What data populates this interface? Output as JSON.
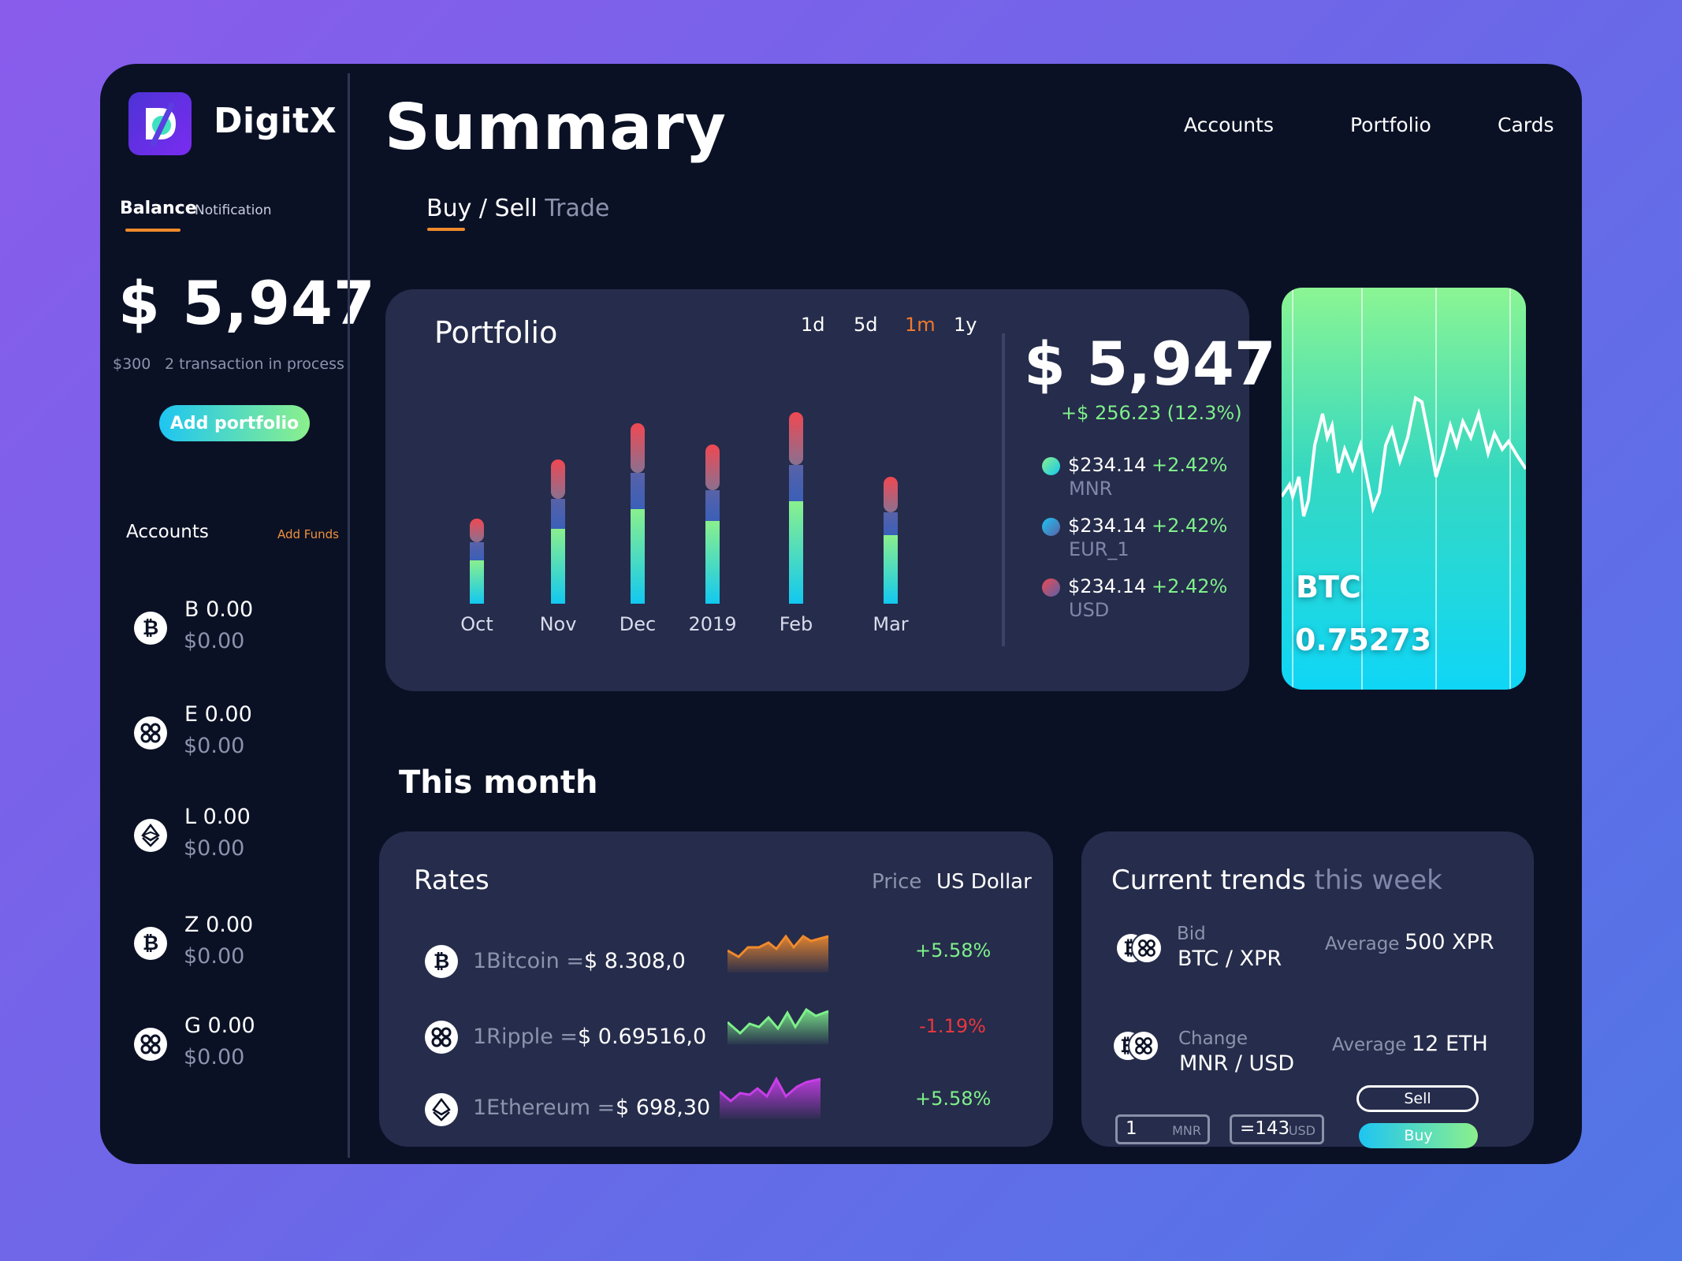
{
  "brand": {
    "name": "DigitX"
  },
  "sidebar": {
    "tabs": {
      "balance": "Balance",
      "notification": "Notification"
    },
    "balance": "$ 5,947",
    "pending_amount": "$300",
    "pending_text": "2 transaction in process",
    "add_portfolio": "Add portfolio",
    "accounts_title": "Accounts",
    "add_funds": "Add Funds",
    "accounts": [
      {
        "name": "B 0.00",
        "value": "$0.00",
        "icon": "bitcoin-icon"
      },
      {
        "name": "E 0.00",
        "value": "$0.00",
        "icon": "ripple-icon"
      },
      {
        "name": "L 0.00",
        "value": "$0.00",
        "icon": "ethereum-icon"
      },
      {
        "name": "Z 0.00",
        "value": "$0.00",
        "icon": "bitcoin-icon"
      },
      {
        "name": "G 0.00",
        "value": "$0.00",
        "icon": "ripple-icon"
      }
    ]
  },
  "header": {
    "title": "Summary",
    "nav": [
      "Accounts",
      "Portfolio",
      "Cards"
    ],
    "subtab_buy_sell": "Buy / Sell",
    "subtab_trade": "Trade"
  },
  "portfolio": {
    "title": "Portfolio",
    "periods": [
      "1d",
      "5d",
      "1m",
      "1y"
    ],
    "active_period": "1m",
    "amount": "$ 5,947",
    "change": "+$ 256.23 (12.3%)",
    "legend": [
      {
        "value": "$234.14",
        "pct": "+2.42%",
        "name": "MNR"
      },
      {
        "value": "$234.14",
        "pct": "+2.42%",
        "name": "EUR_1"
      },
      {
        "value": "$234.14",
        "pct": "+2.42%",
        "name": "USD"
      }
    ]
  },
  "chart_data": {
    "type": "bar",
    "stacked": true,
    "categories": [
      "Oct",
      "Nov",
      "Dec",
      "2019",
      "Feb",
      "Mar"
    ],
    "series": [
      {
        "name": "MNR",
        "values": [
          55,
          95,
          120,
          105,
          130,
          87
        ]
      },
      {
        "name": "EUR_1",
        "values": [
          22,
          37,
          45,
          38,
          45,
          28
        ]
      },
      {
        "name": "USD",
        "values": [
          30,
          50,
          63,
          58,
          67,
          45
        ]
      }
    ],
    "ylim": [
      0,
      260
    ]
  },
  "btc_card": {
    "label": "BTC",
    "value": "0.75273"
  },
  "this_month": "This month",
  "rates": {
    "title": "Rates",
    "price_label": "Price",
    "currency": "US Dollar",
    "rows": [
      {
        "name": "1Bitcoin =",
        "price": "$ 8.308,0",
        "pct": "+5.58%",
        "icon": "bitcoin-icon"
      },
      {
        "name": "1Ripple =",
        "price": "$ 0.69516,0",
        "pct": "-1.19%",
        "icon": "ripple-icon"
      },
      {
        "name": "1Ethereum =",
        "price": "$ 698,30",
        "pct": "+5.58%",
        "icon": "ethereum-icon"
      }
    ]
  },
  "trends": {
    "title": "Current trends",
    "subtitle": "this week",
    "rows": [
      {
        "label": "Bid",
        "pair": "BTC / XPR",
        "avg_label": "Average",
        "avg": "500 XPR"
      },
      {
        "label": "Change",
        "pair": "MNR / USD",
        "avg_label": "Average",
        "avg": "12 ETH"
      }
    ],
    "input1": {
      "value": "1",
      "unit": "MNR"
    },
    "input2": {
      "value": "=143",
      "unit": "USD"
    },
    "sell": "Sell",
    "buy": "Buy"
  },
  "colors": {
    "background": "#0b1125",
    "card": "#262c4b",
    "accent_orange": "#f08a2c",
    "positive": "#7ef08a",
    "negative": "#e8373f"
  }
}
